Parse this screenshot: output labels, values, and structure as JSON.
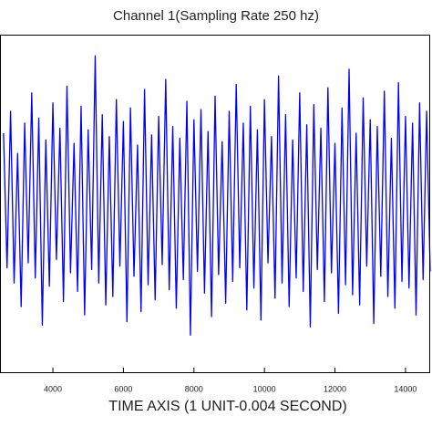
{
  "chart_data": {
    "type": "line",
    "title": "Channel 1(Sampling Rate 250 hz)",
    "x_label": "TIME AXIS (1 UNIT-0.004 SECOND)",
    "x": [
      2600,
      2700,
      2800,
      2900,
      3000,
      3100,
      3200,
      3300,
      3400,
      3500,
      3600,
      3700,
      3800,
      3900,
      4000,
      4100,
      4200,
      4300,
      4400,
      4500,
      4600,
      4700,
      4800,
      4900,
      5000,
      5100,
      5200,
      5300,
      5400,
      5500,
      5600,
      5700,
      5800,
      5900,
      6000,
      6100,
      6200,
      6300,
      6400,
      6500,
      6600,
      6700,
      6800,
      6900,
      7000,
      7100,
      7200,
      7300,
      7400,
      7500,
      7600,
      7700,
      7800,
      7900,
      8000,
      8100,
      8200,
      8300,
      8400,
      8500,
      8600,
      8700,
      8800,
      8900,
      9000,
      9100,
      9200,
      9300,
      9400,
      9500,
      9600,
      9700,
      9800,
      9900,
      10000,
      10100,
      10200,
      10300,
      10400,
      10500,
      10600,
      10700,
      10800,
      10900,
      11000,
      11100,
      11200,
      11300,
      11400,
      11500,
      11600,
      11700,
      11800,
      11900,
      12000,
      12100,
      12200,
      12300,
      12400,
      12500,
      12600,
      12700,
      12800,
      12900,
      13000,
      13100,
      13200,
      13300,
      13400,
      13500,
      13600,
      13700,
      13800,
      13900,
      14000,
      14100,
      14200,
      14300,
      14400,
      14500,
      14600,
      14700
    ],
    "series": [
      {
        "color": "#0000ff",
        "values": [
          42,
          -38,
          55,
          -47,
          30,
          -61,
          48,
          -35,
          66,
          -44,
          51,
          -72,
          38,
          -49,
          60,
          -33,
          45,
          -58,
          70,
          -41,
          36,
          -52,
          58,
          -66,
          44,
          -39,
          88,
          -47,
          53,
          -60,
          40,
          -55,
          62,
          -37,
          49,
          -70,
          57,
          -43,
          35,
          -64,
          68,
          -48,
          41,
          -57,
          52,
          -36,
          74,
          -51,
          46,
          -62,
          39,
          -45,
          61,
          -78,
          50,
          -40,
          56,
          -53,
          43,
          -67,
          64,
          -42,
          37,
          -59,
          55,
          -46,
          71,
          -38,
          48,
          -63,
          58,
          -50,
          44,
          -69,
          62,
          -35,
          40,
          -56,
          76,
          -47,
          53,
          -61,
          38,
          -44,
          66,
          -52,
          47,
          -73,
          59,
          -39,
          45,
          -58,
          69,
          -41,
          36,
          -65,
          57,
          -48,
          80,
          -54,
          42,
          -60,
          63,
          -37,
          50,
          -71,
          46,
          -43,
          67,
          -55,
          39,
          -62,
          72,
          -46,
          52,
          -50,
          48,
          -66,
          60,
          -45,
          55,
          -40
        ]
      }
    ],
    "xlim": [
      2500,
      14700
    ],
    "ylim": [
      -100,
      100
    ],
    "xticks": [
      4000,
      6000,
      8000,
      10000,
      12000,
      14000
    ]
  }
}
